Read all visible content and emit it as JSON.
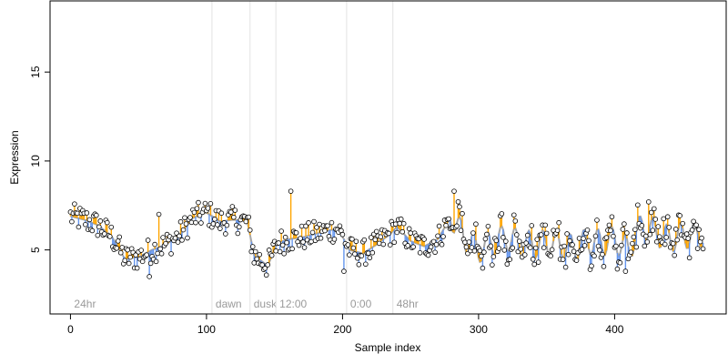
{
  "chart_data": {
    "type": "scatter",
    "title": "",
    "xlabel": "Sample index",
    "ylabel": "Expression",
    "xlim": [
      -15,
      482
    ],
    "ylim": [
      1.4,
      19.0
    ],
    "x_ticks": [
      0,
      100,
      200,
      300,
      400
    ],
    "y_ticks": [
      5,
      10,
      15
    ],
    "grid": false,
    "legend": "none",
    "markers": [
      {
        "label": "24hr",
        "x": 0
      },
      {
        "label": "dawn",
        "x": 104
      },
      {
        "label": "dusk",
        "x": 132
      },
      {
        "label": "12:00",
        "x": 151
      },
      {
        "label": "0:00",
        "x": 203
      },
      {
        "label": "48hr",
        "x": 237
      }
    ],
    "fit_line_color": "#a6a6a6",
    "residual_colors": {
      "positive": "#ffa500",
      "negative": "#6495ed"
    },
    "point_style": {
      "fill": "#ffffff",
      "stroke": "#000000"
    },
    "n_points": 466,
    "anchors": [
      [
        0,
        6.9
      ],
      [
        10,
        6.7
      ],
      [
        20,
        6.4
      ],
      [
        30,
        5.8
      ],
      [
        40,
        4.5
      ],
      [
        50,
        4.6
      ],
      [
        60,
        5.0
      ],
      [
        70,
        5.3
      ],
      [
        80,
        5.8
      ],
      [
        90,
        6.8
      ],
      [
        100,
        7.1
      ],
      [
        110,
        6.6
      ],
      [
        120,
        6.7
      ],
      [
        130,
        6.6
      ],
      [
        135,
        4.7
      ],
      [
        145,
        4.1
      ],
      [
        152,
        5.4
      ],
      [
        160,
        5.6
      ],
      [
        170,
        5.7
      ],
      [
        180,
        5.9
      ],
      [
        190,
        6.1
      ],
      [
        197,
        6.2
      ],
      [
        205,
        5.0
      ],
      [
        215,
        4.8
      ],
      [
        225,
        5.3
      ],
      [
        235,
        5.9
      ],
      [
        240,
        6.3
      ],
      [
        250,
        5.5
      ],
      [
        260,
        5.2
      ],
      [
        270,
        5.6
      ],
      [
        280,
        6.9
      ],
      [
        290,
        5.6
      ],
      [
        300,
        5.0
      ],
      [
        310,
        5.4
      ],
      [
        320,
        5.7
      ],
      [
        330,
        5.4
      ],
      [
        340,
        5.3
      ],
      [
        350,
        5.4
      ],
      [
        360,
        5.3
      ],
      [
        370,
        5.1
      ],
      [
        380,
        5.5
      ],
      [
        390,
        5.4
      ],
      [
        400,
        5.6
      ],
      [
        410,
        5.0
      ],
      [
        420,
        6.4
      ],
      [
        430,
        6.0
      ],
      [
        440,
        5.6
      ],
      [
        450,
        5.8
      ],
      [
        465,
        5.9
      ]
    ],
    "highlight_points": [
      [
        35,
        5.5
      ],
      [
        58,
        3.5
      ],
      [
        65,
        7.0
      ],
      [
        162,
        8.3
      ],
      [
        201,
        3.8
      ],
      [
        282,
        8.3
      ],
      [
        408,
        3.8
      ],
      [
        425,
        7.7
      ]
    ]
  }
}
